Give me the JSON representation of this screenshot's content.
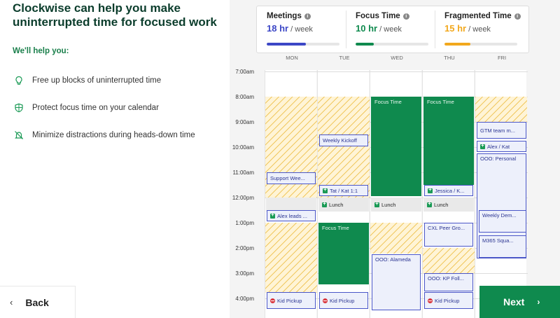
{
  "left": {
    "headline": "Clockwise can help you make uninterrupted time for focused work",
    "help_label": "We'll help you:",
    "features": [
      {
        "icon": "lightbulb-icon",
        "label": "Free up blocks of uninterrupted time"
      },
      {
        "icon": "shield-icon",
        "label": "Protect focus time on your calendar"
      },
      {
        "icon": "bell-off-icon",
        "label": "Minimize distractions during heads-down time"
      }
    ],
    "back_label": "Back"
  },
  "stats": [
    {
      "title": "Meetings",
      "value": "18 hr",
      "unit": "/ week",
      "color": "#3c47c6",
      "progress": 0.54
    },
    {
      "title": "Focus Time",
      "value": "10 hr",
      "unit": "/ week",
      "color": "#0f8a4e",
      "progress": 0.25
    },
    {
      "title": "Fragmented Time",
      "value": "15 hr",
      "unit": "/ week",
      "color": "#f2a81d",
      "progress": 0.36
    }
  ],
  "calendar": {
    "days": [
      "MON",
      "TUE",
      "WED",
      "THU",
      "FRI"
    ],
    "times": [
      "7:00am",
      "8:00am",
      "9:00am",
      "10:00am",
      "11:00am",
      "12:00pm",
      "1:00pm",
      "2:00pm",
      "3:00pm",
      "4:00pm"
    ],
    "events": {
      "focus_label": "Focus Time",
      "lunch_label": "Lunch",
      "mon_support": "Support Wee...",
      "mon_alex": "Alex leads ...",
      "mon_kid": "Kid Pickup",
      "tue_kickoff": "Weekly Kickoff",
      "tue_tatkat": "Tat / Kat 1:1",
      "tue_kid": "Kid Pickup",
      "wed_ooo": "OOO: Alameda",
      "thu_jessica": "Jessica / K...",
      "thu_cxl": "CXL Peer Gro...",
      "thu_kp": "OOO: KP Foll...",
      "thu_kid": "Kid Pickup",
      "fri_gtm": "GTM team m...",
      "fri_alex": "Alex / Kat",
      "fri_ooo": "OOO: Personal",
      "fri_weekly": "Weekly Dem...",
      "fri_m365": "M365 Squa..."
    }
  },
  "next_label": "Next",
  "colors": {
    "accent_green": "#0f8a4e",
    "meeting_blue": "#3c47c6",
    "fragment_orange": "#f2a81d"
  }
}
